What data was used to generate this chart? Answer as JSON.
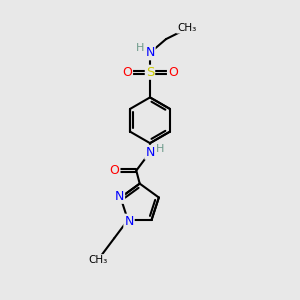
{
  "bg_color": "#e8e8e8",
  "atom_colors": {
    "C": "#000000",
    "H": "#6e9b8b",
    "N": "#0000ff",
    "O": "#ff0000",
    "S": "#cccc00"
  },
  "bond_color": "#000000",
  "bond_width": 1.5,
  "figsize": [
    3.0,
    3.0
  ],
  "dpi": 100,
  "xlim": [
    0,
    10
  ],
  "ylim": [
    0,
    13
  ]
}
